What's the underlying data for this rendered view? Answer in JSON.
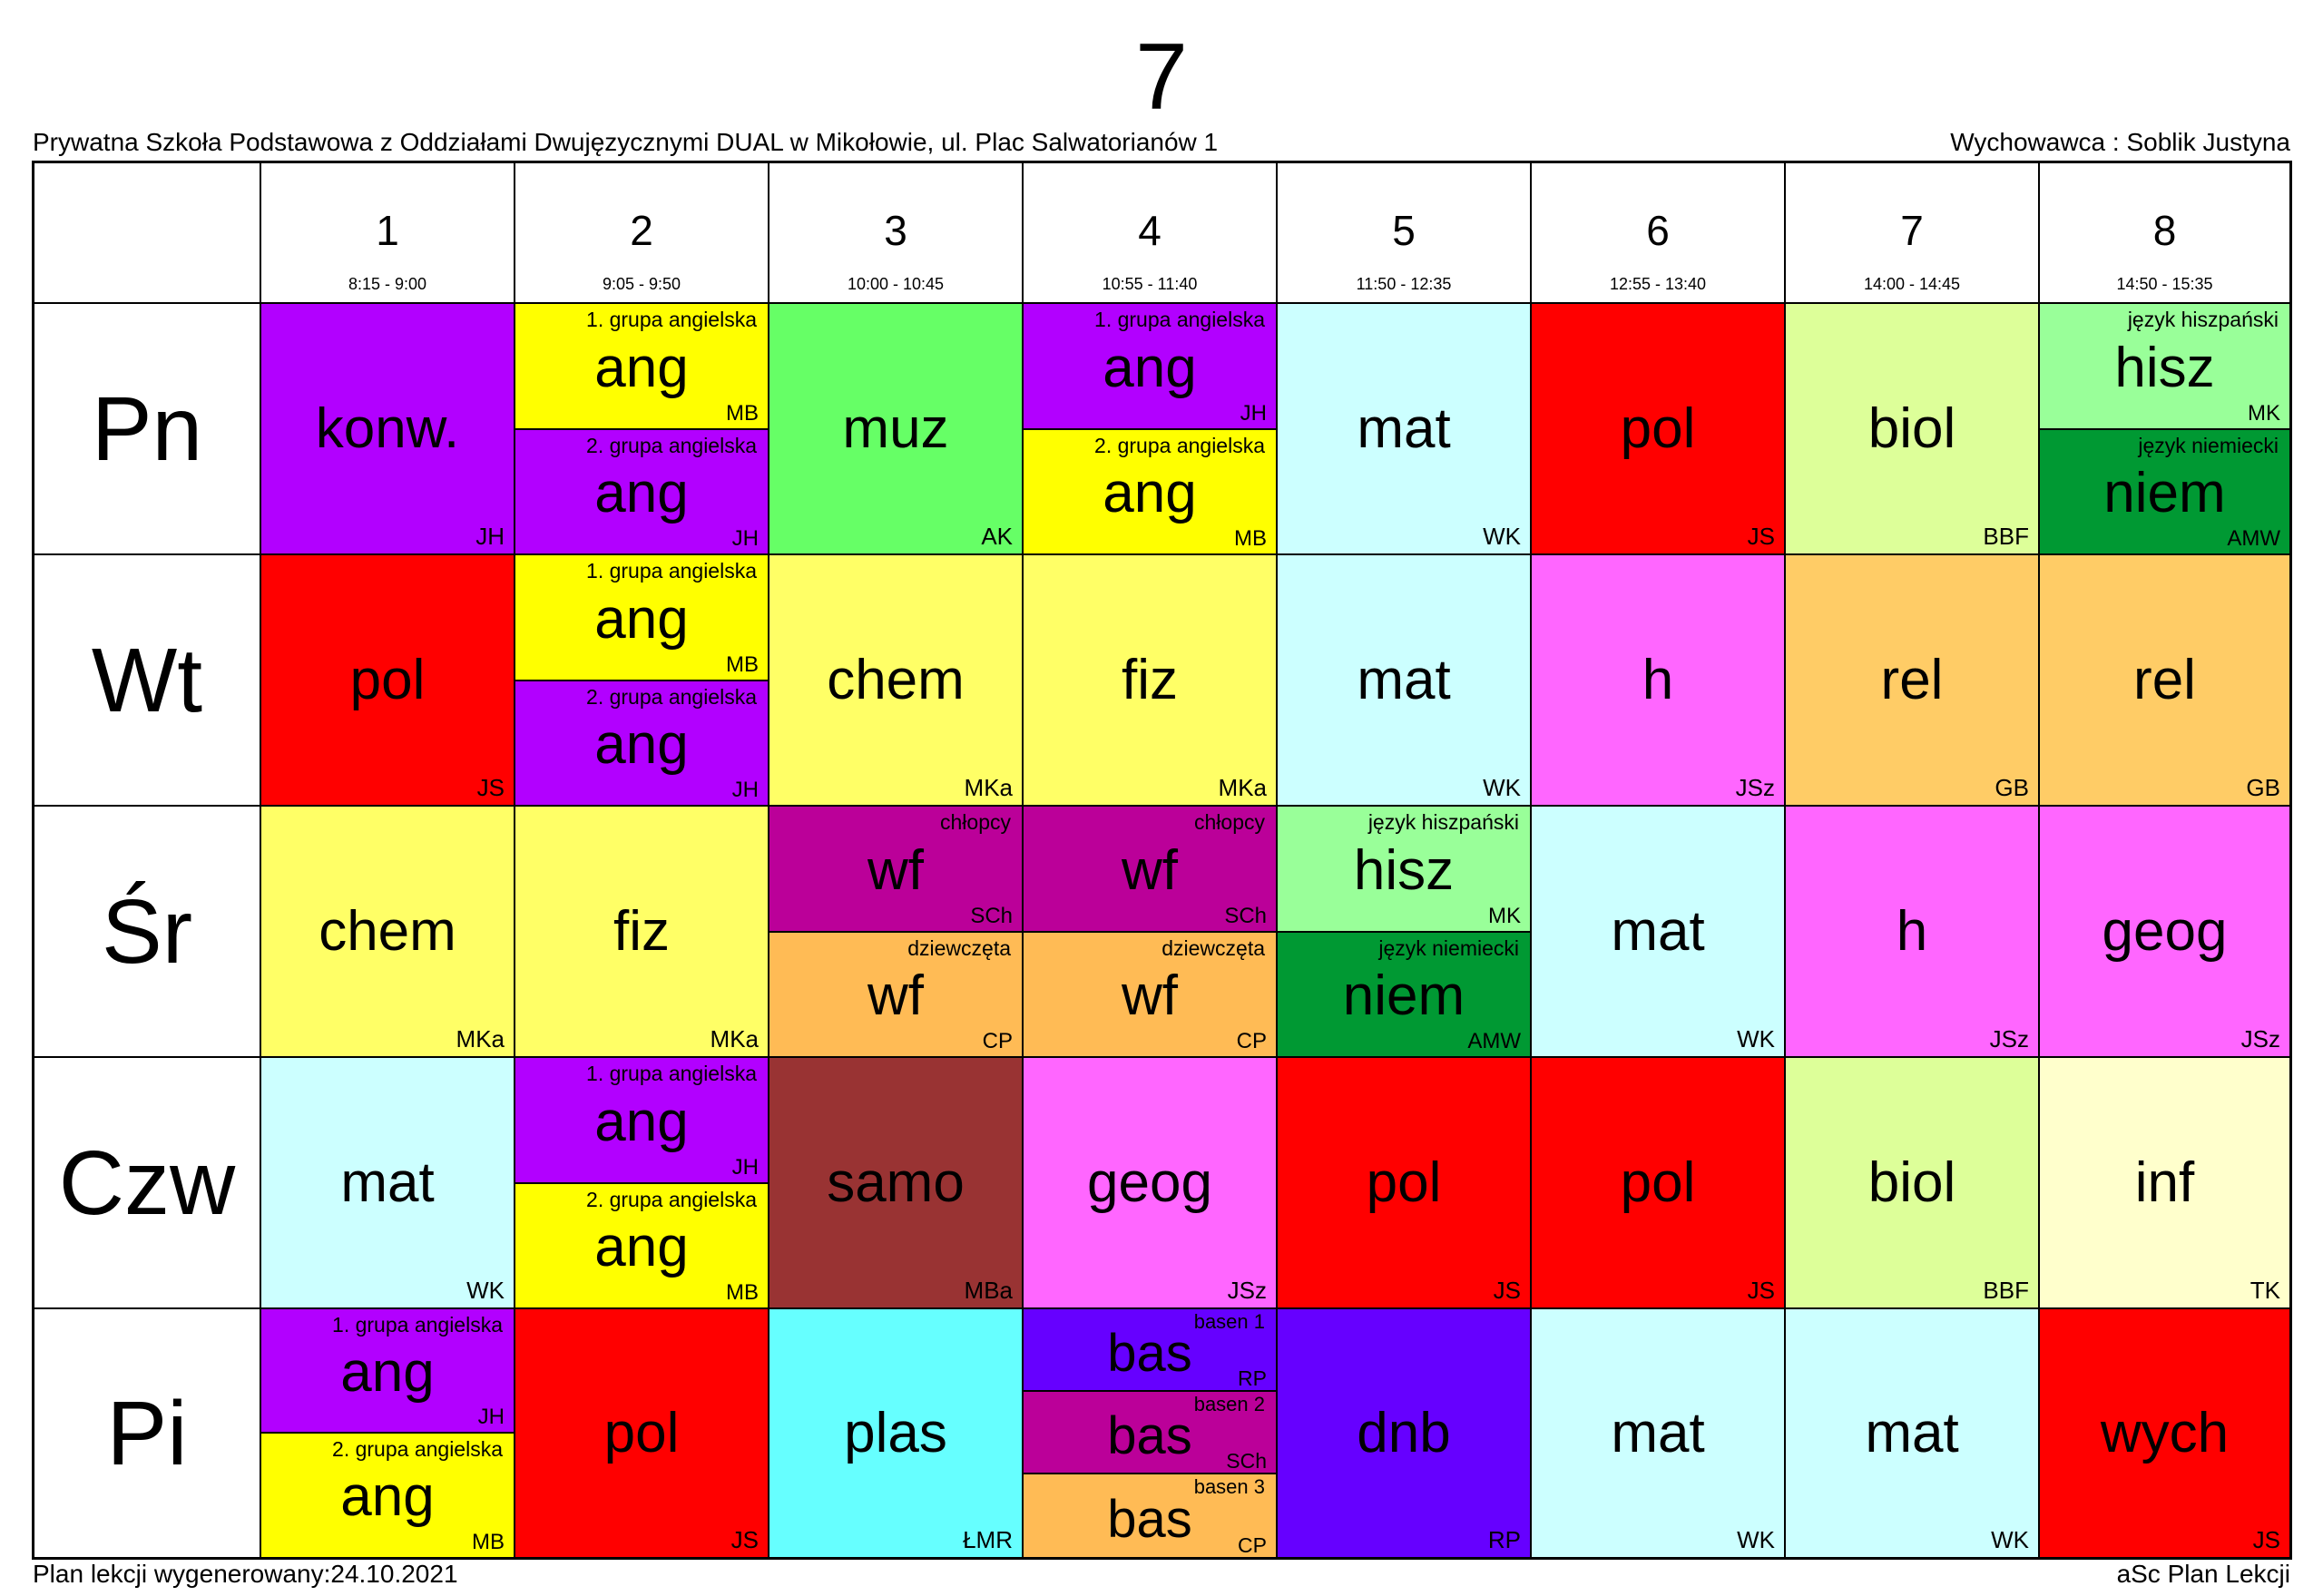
{
  "header": {
    "class_name": "7",
    "school": "Prywatna Szkoła Podstawowa z Oddziałami Dwujęzycznymi DUAL w Mikołowie, ul. Plac Salwatorianów 1",
    "homeroom_teacher": "Wychowawca : Soblik Justyna"
  },
  "footer": {
    "generated": "Plan lekcji wygenerowany:24.10.2021",
    "software": "aSc Plan Lekcji"
  },
  "periods": [
    {
      "number": "1",
      "time": "8:15 - 9:00"
    },
    {
      "number": "2",
      "time": "9:05 - 9:50"
    },
    {
      "number": "3",
      "time": "10:00 - 10:45"
    },
    {
      "number": "4",
      "time": "10:55 - 11:40"
    },
    {
      "number": "5",
      "time": "11:50 - 12:35"
    },
    {
      "number": "6",
      "time": "12:55 - 13:40"
    },
    {
      "number": "7",
      "time": "14:00 - 14:45"
    },
    {
      "number": "8",
      "time": "14:50 - 15:35"
    }
  ],
  "days": [
    {
      "label": "Pn",
      "lessons": [
        [
          {
            "subject": "konw.",
            "teacher": "JH",
            "color": "#B200FF"
          }
        ],
        [
          {
            "group": "1. grupa angielska",
            "subject": "ang",
            "teacher": "MB",
            "color": "#FFFF00"
          },
          {
            "group": "2. grupa angielska",
            "subject": "ang",
            "teacher": "JH",
            "color": "#B200FF"
          }
        ],
        [
          {
            "subject": "muz",
            "teacher": "AK",
            "color": "#66FF66"
          }
        ],
        [
          {
            "group": "1. grupa angielska",
            "subject": "ang",
            "teacher": "JH",
            "color": "#B200FF"
          },
          {
            "group": "2. grupa angielska",
            "subject": "ang",
            "teacher": "MB",
            "color": "#FFFF00"
          }
        ],
        [
          {
            "subject": "mat",
            "teacher": "WK",
            "color": "#CCFFFF"
          }
        ],
        [
          {
            "subject": "pol",
            "teacher": "JS",
            "color": "#FF0000"
          }
        ],
        [
          {
            "subject": "biol",
            "teacher": "BBF",
            "color": "#DDFF99"
          }
        ],
        [
          {
            "group": "język hiszpański",
            "subject": "hisz",
            "teacher": "MK",
            "color": "#99FF99"
          },
          {
            "group": "język niemiecki",
            "subject": "niem",
            "teacher": "AMW",
            "color": "#009933"
          }
        ]
      ]
    },
    {
      "label": "Wt",
      "lessons": [
        [
          {
            "subject": "pol",
            "teacher": "JS",
            "color": "#FF0000"
          }
        ],
        [
          {
            "group": "1. grupa angielska",
            "subject": "ang",
            "teacher": "MB",
            "color": "#FFFF00"
          },
          {
            "group": "2. grupa angielska",
            "subject": "ang",
            "teacher": "JH",
            "color": "#B200FF"
          }
        ],
        [
          {
            "subject": "chem",
            "teacher": "MKa",
            "color": "#FFFF66"
          }
        ],
        [
          {
            "subject": "fiz",
            "teacher": "MKa",
            "color": "#FFFF66"
          }
        ],
        [
          {
            "subject": "mat",
            "teacher": "WK",
            "color": "#CCFFFF"
          }
        ],
        [
          {
            "subject": "h",
            "teacher": "JSz",
            "color": "#FF66FF"
          }
        ],
        [
          {
            "subject": "rel",
            "teacher": "GB",
            "color": "#FFCC66"
          }
        ],
        [
          {
            "subject": "rel",
            "teacher": "GB",
            "color": "#FFCC66"
          }
        ]
      ]
    },
    {
      "label": "Śr",
      "lessons": [
        [
          {
            "subject": "chem",
            "teacher": "MKa",
            "color": "#FFFF66"
          }
        ],
        [
          {
            "subject": "fiz",
            "teacher": "MKa",
            "color": "#FFFF66"
          }
        ],
        [
          {
            "group": "chłopcy",
            "subject": "wf",
            "teacher": "SCh",
            "color": "#BB0099"
          },
          {
            "group": "dziewczęta",
            "subject": "wf",
            "teacher": "CP",
            "color": "#FFBB55"
          }
        ],
        [
          {
            "group": "chłopcy",
            "subject": "wf",
            "teacher": "SCh",
            "color": "#BB0099"
          },
          {
            "group": "dziewczęta",
            "subject": "wf",
            "teacher": "CP",
            "color": "#FFBB55"
          }
        ],
        [
          {
            "group": "język hiszpański",
            "subject": "hisz",
            "teacher": "MK",
            "color": "#99FF99"
          },
          {
            "group": "język niemiecki",
            "subject": "niem",
            "teacher": "AMW",
            "color": "#009933"
          }
        ],
        [
          {
            "subject": "mat",
            "teacher": "WK",
            "color": "#CCFFFF"
          }
        ],
        [
          {
            "subject": "h",
            "teacher": "JSz",
            "color": "#FF66FF"
          }
        ],
        [
          {
            "subject": "geog",
            "teacher": "JSz",
            "color": "#FF66FF"
          }
        ]
      ]
    },
    {
      "label": "Czw",
      "lessons": [
        [
          {
            "subject": "mat",
            "teacher": "WK",
            "color": "#CCFFFF"
          }
        ],
        [
          {
            "group": "1. grupa angielska",
            "subject": "ang",
            "teacher": "JH",
            "color": "#B200FF"
          },
          {
            "group": "2. grupa angielska",
            "subject": "ang",
            "teacher": "MB",
            "color": "#FFFF00"
          }
        ],
        [
          {
            "subject": "samo",
            "teacher": "MBa",
            "color": "#993333"
          }
        ],
        [
          {
            "subject": "geog",
            "teacher": "JSz",
            "color": "#FF66FF"
          }
        ],
        [
          {
            "subject": "pol",
            "teacher": "JS",
            "color": "#FF0000"
          }
        ],
        [
          {
            "subject": "pol",
            "teacher": "JS",
            "color": "#FF0000"
          }
        ],
        [
          {
            "subject": "biol",
            "teacher": "BBF",
            "color": "#DDFF99"
          }
        ],
        [
          {
            "subject": "inf",
            "teacher": "TK",
            "color": "#FFFFCC"
          }
        ]
      ]
    },
    {
      "label": "Pi",
      "lessons": [
        [
          {
            "group": "1. grupa angielska",
            "subject": "ang",
            "teacher": "JH",
            "color": "#B200FF"
          },
          {
            "group": "2. grupa angielska",
            "subject": "ang",
            "teacher": "MB",
            "color": "#FFFF00"
          }
        ],
        [
          {
            "subject": "pol",
            "teacher": "JS",
            "color": "#FF0000"
          }
        ],
        [
          {
            "subject": "plas",
            "teacher": "ŁMR",
            "color": "#66FFFF"
          }
        ],
        [
          {
            "group": "basen 1",
            "subject": "bas",
            "teacher": "RP",
            "color": "#6600FF"
          },
          {
            "group": "basen 2",
            "subject": "bas",
            "teacher": "SCh",
            "color": "#BB0099"
          },
          {
            "group": "basen 3",
            "subject": "bas",
            "teacher": "CP",
            "color": "#FFBB55"
          }
        ],
        [
          {
            "subject": "dnb",
            "teacher": "RP",
            "color": "#6600FF"
          }
        ],
        [
          {
            "subject": "mat",
            "teacher": "WK",
            "color": "#CCFFFF"
          }
        ],
        [
          {
            "subject": "mat",
            "teacher": "WK",
            "color": "#CCFFFF"
          }
        ],
        [
          {
            "subject": "wych",
            "teacher": "JS",
            "color": "#FF0000"
          }
        ]
      ]
    }
  ]
}
